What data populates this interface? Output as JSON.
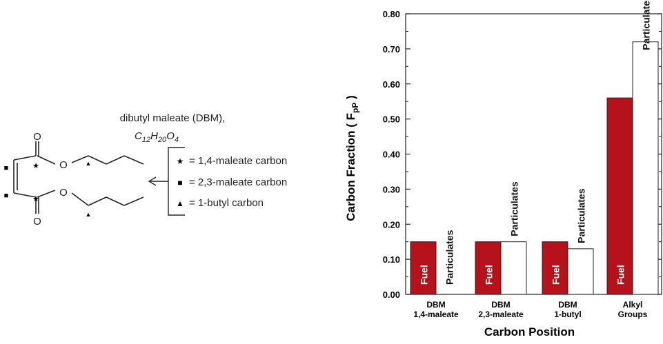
{
  "molecule": {
    "name_line": "dibutyl maleate (DBM),",
    "formula_parts": [
      "C",
      "12",
      "H",
      "20",
      "O",
      "4"
    ],
    "atom_O": "O",
    "legend": [
      {
        "symbol": "★",
        "label": "= 1,4-maleate carbon"
      },
      {
        "symbol": "■",
        "label": "= 2,3-maleate carbon"
      },
      {
        "symbol": "▲",
        "label": "= 1-butyl carbon"
      }
    ],
    "marker_star": "★",
    "marker_square": "■",
    "marker_triangle": "▲"
  },
  "chart_data": {
    "type": "bar",
    "xlabel": "Carbon Position",
    "ylabel_main": "Carbon Fraction ( F",
    "ylabel_sub": "pP",
    "ylabel_end": " )",
    "ylim": [
      0,
      0.8
    ],
    "yticks": [
      "0.00",
      "0.10",
      "0.20",
      "0.30",
      "0.40",
      "0.50",
      "0.60",
      "0.70",
      "0.80"
    ],
    "categories": [
      {
        "line1": "DBM",
        "line2": "1,4-maleate"
      },
      {
        "line1": "DBM",
        "line2": "2,3-maleate"
      },
      {
        "line1": "DBM",
        "line2": "1-butyl"
      },
      {
        "line1": "Alkyl",
        "line2": "Groups"
      }
    ],
    "series": [
      {
        "name": "Fuel",
        "color": "#b5121b",
        "values": [
          0.15,
          0.15,
          0.15,
          0.56
        ]
      },
      {
        "name": "Particulates",
        "color": "#ffffff",
        "values": [
          0.0,
          0.15,
          0.13,
          0.72
        ]
      }
    ],
    "grid": false
  }
}
